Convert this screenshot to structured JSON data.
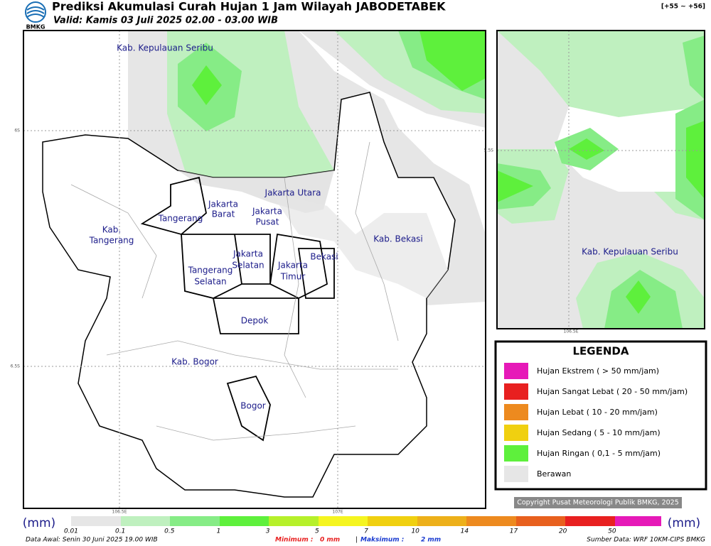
{
  "header": {
    "logo_text": "BMKG",
    "title": "Prediksi Akumulasi Curah Hujan 1 Jam Wilayah JABODETABEK",
    "valid": "Valid: Kamis 03 Juli 2025 02.00 - 03.00 WIB",
    "run_code": "[+55 ~ +56]"
  },
  "main_map": {
    "regions": [
      "Kab. Kepulauan Seribu",
      "Jakarta Utara",
      "Jakarta",
      "Barat",
      "Jakarta",
      "Pusat",
      "Tangerang",
      "Kab.",
      "Tangerang",
      "Kab. Bekasi",
      "Jakarta",
      "Selatan",
      "Bekasi",
      "Jakarta",
      "Timur",
      "Tangerang",
      "Selatan",
      "Depok",
      "Kab. Bogor",
      "Bogor"
    ],
    "lat_labels": [
      "6S",
      "6.5S"
    ],
    "lon_labels": [
      "106.5E",
      "107E"
    ]
  },
  "inset_map": {
    "region": "Kab. Kepulauan Seribu",
    "lat_label": "5.5S",
    "lon_label": "106.5E"
  },
  "legend": {
    "title": "LEGENDA",
    "items": [
      "Hujan Ekstrem ( > 50 mm/jam)",
      "Hujan Sangat Lebat ( 20 - 50 mm/jam)",
      "Hujan Lebat ( 10 - 20 mm/jam)",
      "Hujan Sedang ( 5 - 10 mm/jam)",
      "Hujan Ringan ( 0,1 - 5 mm/jam)",
      "Berawan"
    ]
  },
  "copyright": "Copyright Pusat Meteorologi Publik BMKG, 2025",
  "colorbar": {
    "unit_left": "(mm)",
    "unit_right": "(mm)",
    "labels": [
      "0.01",
      "0.1",
      "0.5",
      "1",
      "3",
      "5",
      "7",
      "10",
      "14",
      "17",
      "20",
      "50"
    ]
  },
  "footer": {
    "data_awal": "Data Awal: Senin 30 Juni 2025 19.00 WIB",
    "min_label": "Minimum :",
    "min_value": "0 mm",
    "separator": "|",
    "max_label": "Maksimum :",
    "max_value": "2 mm",
    "source": "Sumber Data: WRF 10KM-CIPS BMKG"
  }
}
